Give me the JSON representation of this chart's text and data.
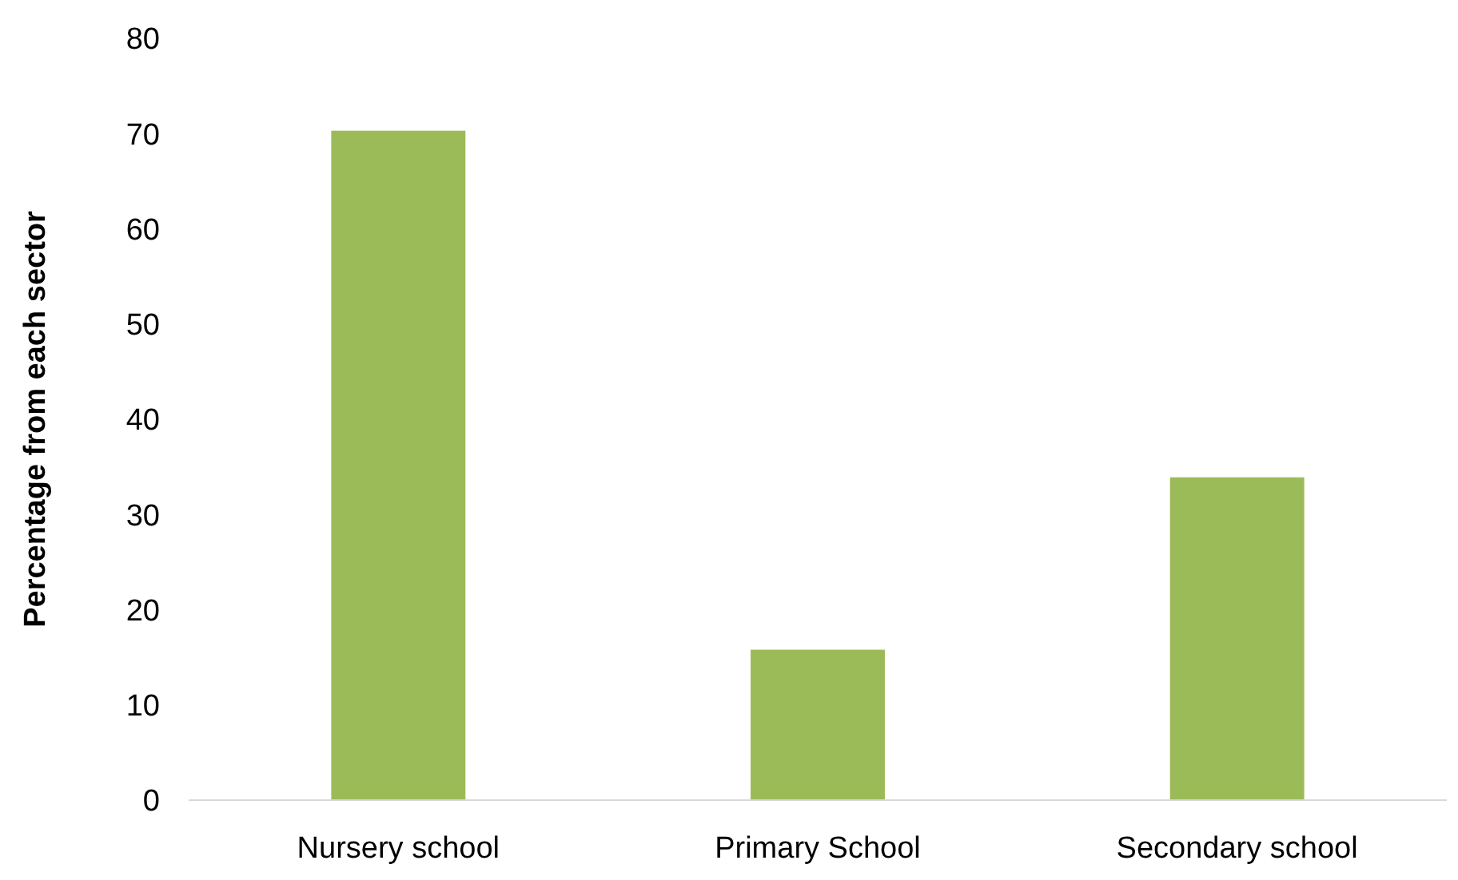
{
  "chart_data": {
    "type": "bar",
    "ylabel": "Percentage from each sector",
    "categories": [
      "Nursery school",
      "Primary School",
      "Secondary school"
    ],
    "values": [
      70.3,
      15.8,
      33.9
    ],
    "color": "#9bbb59",
    "ylim": [
      0,
      80
    ],
    "yticks": [
      0,
      10,
      20,
      30,
      40,
      50,
      60,
      70,
      80
    ],
    "grid": false
  }
}
